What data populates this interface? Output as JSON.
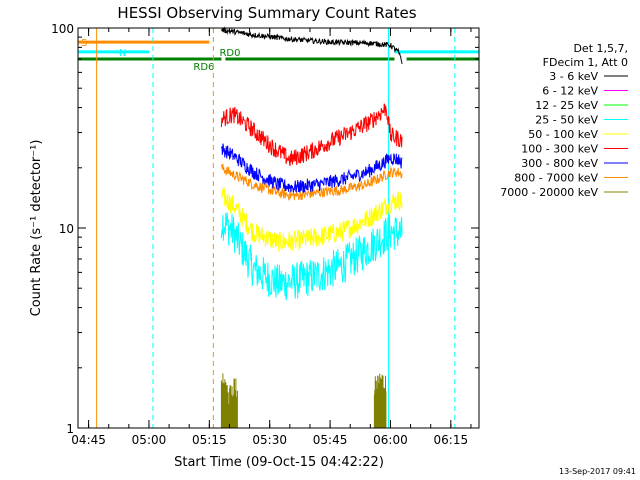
{
  "chart_data": {
    "type": "line",
    "title": "HESSI Observing Summary Count Rates",
    "xlabel": "Start Time (09-Oct-15 04:42:22)",
    "ylabel": "Count Rate (s⁻¹ detector⁻¹)",
    "yscale": "log",
    "xlim": [
      "04:42:22",
      "06:22:00"
    ],
    "ylim": [
      1,
      100
    ],
    "x_ticks": [
      "04:45",
      "05:00",
      "05:15",
      "05:30",
      "05:45",
      "06:00",
      "06:15"
    ],
    "y_ticks": [
      "1",
      "10",
      "100"
    ],
    "footer_date": "13-Sep-2017 09:41",
    "legend": {
      "header1": "Det 1,5,7,",
      "header2": "FDecim 1, Att 0",
      "placement": "right"
    },
    "series": [
      {
        "name": "3 - 6 keV",
        "color": "#000000",
        "x": [
          "05:18",
          "05:25",
          "05:35",
          "05:45",
          "05:55",
          "06:00",
          "06:02",
          "06:03"
        ],
        "y": [
          98,
          93,
          88,
          85,
          84,
          82,
          76,
          66
        ]
      },
      {
        "name": "6 - 12 keV",
        "color": "#ff00ff",
        "x": [],
        "y": []
      },
      {
        "name": "12 - 25 keV",
        "color": "#00ff00",
        "x": [],
        "y": []
      },
      {
        "name": "25 - 50 keV",
        "color": "#00ffff",
        "x": [
          "05:18",
          "05:21",
          "05:26",
          "05:32",
          "05:36",
          "05:42",
          "05:48",
          "05:54",
          "05:58",
          "06:00",
          "06:02",
          "06:03"
        ],
        "y": [
          11,
          9.5,
          6.2,
          5.3,
          5.4,
          5.8,
          6.5,
          7.8,
          9.0,
          9.6,
          9.5,
          9.2
        ]
      },
      {
        "name": "50 - 100 keV",
        "color": "#ffff00",
        "x": [
          "05:18",
          "05:21",
          "05:26",
          "05:32",
          "05:36",
          "05:42",
          "05:48",
          "05:54",
          "05:58",
          "06:00",
          "06:02",
          "06:03"
        ],
        "y": [
          14.5,
          13,
          9.5,
          8.5,
          8.6,
          9.0,
          9.6,
          11,
          12.5,
          13.5,
          13.8,
          13.5
        ]
      },
      {
        "name": "100 - 300 keV",
        "color": "#ff0000",
        "x": [
          "05:18",
          "05:21",
          "05:25",
          "05:30",
          "05:35",
          "05:40",
          "05:45",
          "05:50",
          "05:55",
          "05:59",
          "06:00",
          "06:02",
          "06:03"
        ],
        "y": [
          35,
          37,
          32,
          26,
          22,
          24,
          27,
          30,
          34,
          40,
          29,
          28,
          27
        ]
      },
      {
        "name": "300 - 800 keV",
        "color": "#0000ff",
        "x": [
          "05:18",
          "05:21",
          "05:26",
          "05:32",
          "05:36",
          "05:42",
          "05:48",
          "05:54",
          "05:58",
          "06:00",
          "06:02",
          "06:03"
        ],
        "y": [
          25,
          23,
          19,
          16.5,
          16,
          16.5,
          17.5,
          19,
          21,
          22.5,
          22,
          21
        ]
      },
      {
        "name": "800 - 7000 keV",
        "color": "#ff8c00",
        "x": [
          "05:18",
          "05:21",
          "05:26",
          "05:32",
          "05:36",
          "05:42",
          "05:48",
          "05:54",
          "05:58",
          "06:00",
          "06:02",
          "06:03"
        ],
        "y": [
          20,
          18.5,
          16.5,
          15,
          14.5,
          15,
          15.5,
          16.5,
          18,
          19,
          19,
          18.5
        ]
      },
      {
        "name": "7000 - 20000 keV",
        "color": "#808000",
        "x": [
          "05:18",
          "05:20",
          "05:22",
          "05:56",
          "05:58",
          "05:59"
        ],
        "y": [
          1.6,
          1.4,
          1.6,
          1.5,
          1.7,
          1.5
        ]
      }
    ],
    "flags": [
      {
        "label": "S",
        "color": "#ff8c00",
        "from": "04:42:22",
        "to": "05:15",
        "level": 85
      },
      {
        "label": "N",
        "color": "#00ffff",
        "from": "04:42:22",
        "to": "05:00",
        "level": 76
      },
      {
        "label": "",
        "color": "#00ffff",
        "from": "06:01",
        "to": "06:22:00",
        "level": 76
      },
      {
        "label": "RD6",
        "color": "#008000",
        "from": "04:42:22",
        "to": "05:18",
        "level": 70
      },
      {
        "label": "RD0",
        "color": "#008000",
        "from": "05:19",
        "to": "06:01",
        "level": 70
      },
      {
        "label": "",
        "color": "#008000",
        "from": "06:04",
        "to": "06:22:00",
        "level": 70
      }
    ],
    "markers": [
      {
        "color": "#ff8c00",
        "x": "04:47",
        "style": "solid"
      },
      {
        "color": "#00ffff",
        "x": "05:01",
        "style": "dashed"
      },
      {
        "color": "#ff8c00",
        "x": "05:16",
        "style": "dashed"
      },
      {
        "color": "#00ffff",
        "x": "05:59:30",
        "style": "solid"
      },
      {
        "color": "#00ffff",
        "x": "06:16",
        "style": "dashed"
      }
    ]
  }
}
